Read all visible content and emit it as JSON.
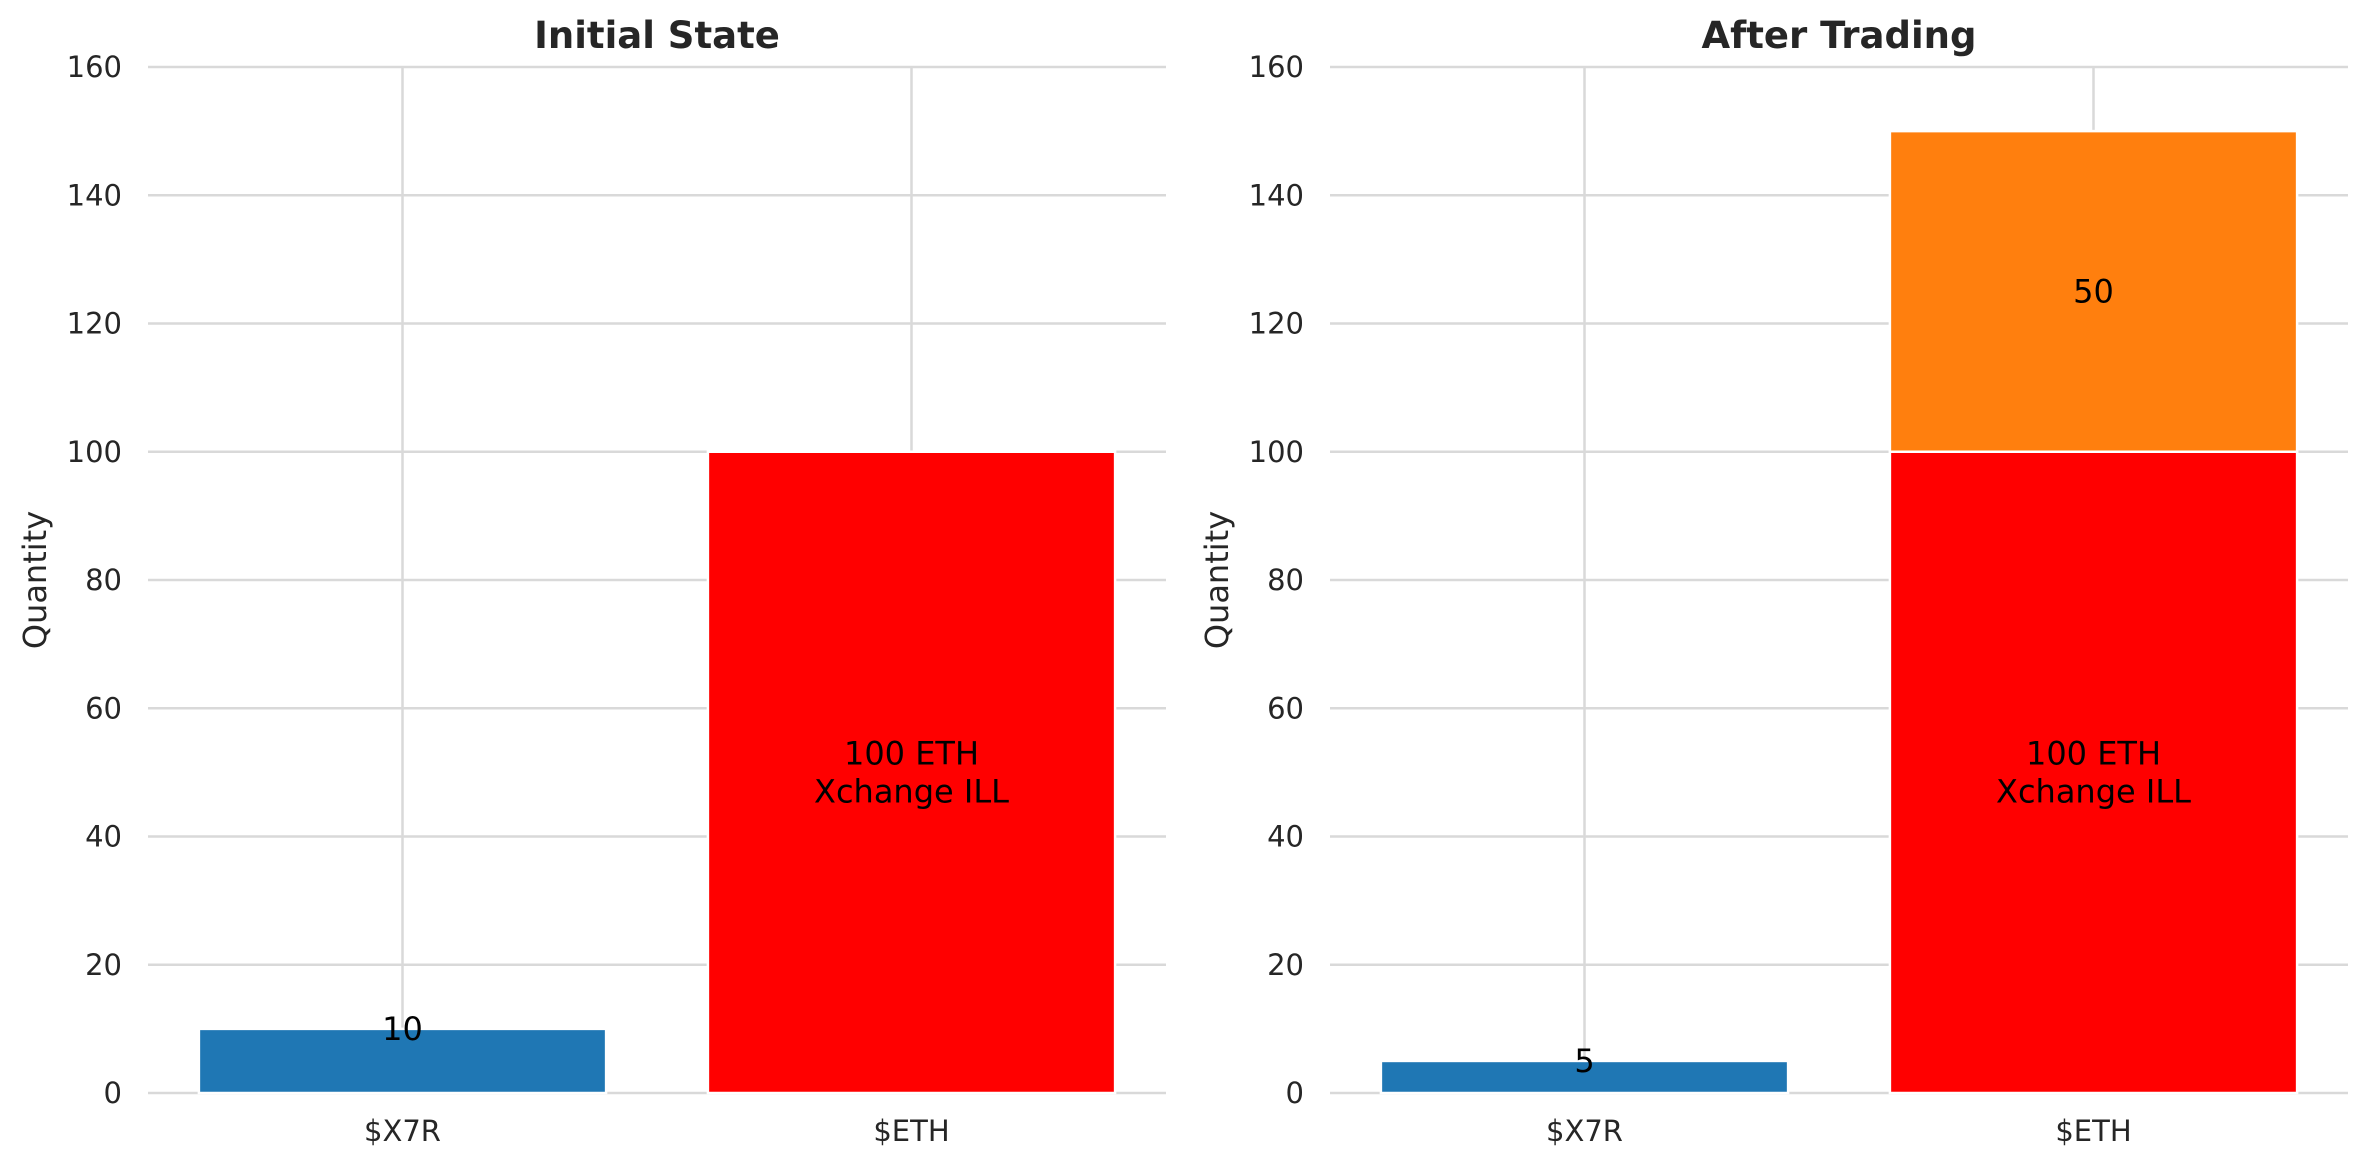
{
  "chart_data": [
    {
      "type": "bar",
      "title": "Initial State",
      "ylabel": "Quantity",
      "categories": [
        "$X7R",
        "$ETH"
      ],
      "ylim": [
        0,
        160
      ],
      "yticks": [
        0,
        20,
        40,
        60,
        80,
        100,
        120,
        140,
        160
      ],
      "grid": true,
      "segments": [
        {
          "category": "$X7R",
          "base": 0,
          "value": 10,
          "color": "#1f77b4",
          "label_lines": [
            "10"
          ],
          "label_pos": "top"
        },
        {
          "category": "$ETH",
          "base": 0,
          "value": 100,
          "color": "#ff0000",
          "label_lines": [
            "100 ETH",
            "Xchange ILL"
          ],
          "label_pos": "center"
        }
      ]
    },
    {
      "type": "bar",
      "title": "After Trading",
      "ylabel": "Quantity",
      "categories": [
        "$X7R",
        "$ETH"
      ],
      "ylim": [
        0,
        160
      ],
      "yticks": [
        0,
        20,
        40,
        60,
        80,
        100,
        120,
        140,
        160
      ],
      "grid": true,
      "segments": [
        {
          "category": "$X7R",
          "base": 0,
          "value": 5,
          "color": "#1f77b4",
          "label_lines": [
            "5"
          ],
          "label_pos": "top"
        },
        {
          "category": "$ETH",
          "base": 0,
          "value": 100,
          "color": "#ff0000",
          "label_lines": [
            "100 ETH",
            "Xchange ILL"
          ],
          "label_pos": "center"
        },
        {
          "category": "$ETH",
          "base": 100,
          "value": 50,
          "color": "#ff7f0e",
          "label_lines": [
            "50"
          ],
          "label_pos": "center"
        }
      ]
    }
  ]
}
